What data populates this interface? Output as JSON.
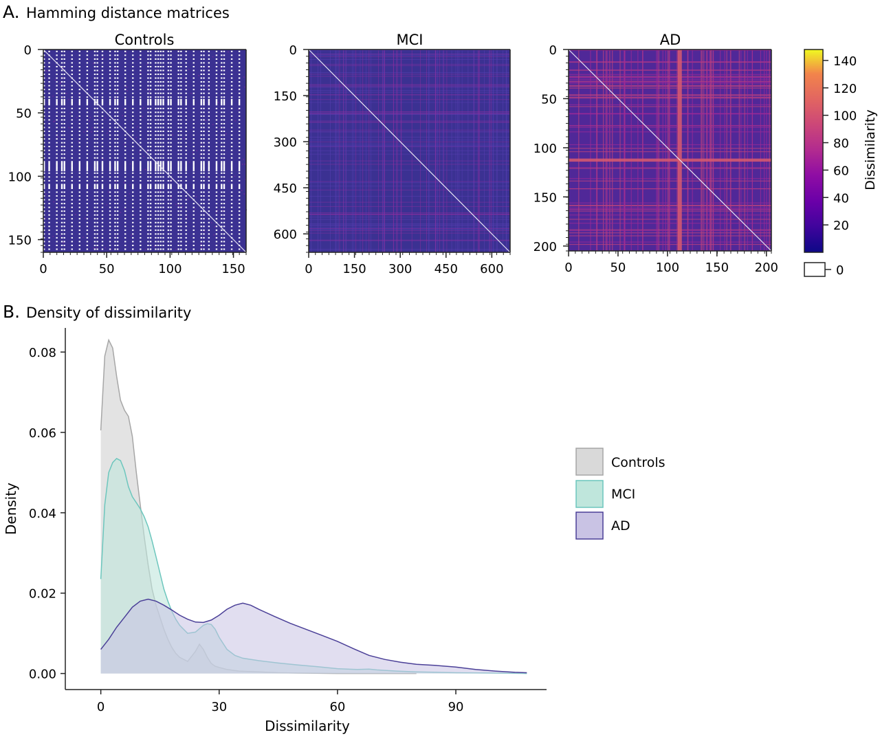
{
  "panel_a": {
    "letter": "A.",
    "title": "Hamming distance matrices"
  },
  "panel_b": {
    "letter": "B.",
    "title": "Density of dissimilarity"
  },
  "colors": {
    "controls_fill": "#d9d9d9",
    "controls_line": "#a6a6a6",
    "mci_fill": "#bfe6dc",
    "mci_line": "#6cc6bd",
    "ad_fill": "#c9c3e4",
    "ad_line": "#4a3f97",
    "heatmap_base": "#3b3192",
    "axis": "#222222"
  },
  "colorbar": {
    "label": "Dissimilarity",
    "ticks": [
      "140",
      "120",
      "100",
      "80",
      "60",
      "40",
      "20"
    ],
    "zero_label": "0",
    "range": [
      0,
      148
    ]
  },
  "chart_data": [
    {
      "type": "heatmap",
      "title": "Controls",
      "n": 160,
      "y_ticks": [
        "0",
        "50",
        "100",
        "150"
      ],
      "x_ticks": [
        "0",
        "50",
        "100",
        "150"
      ],
      "tick_values": [
        0,
        50,
        100,
        150
      ],
      "typical_value": 8,
      "zero_pattern": "many white rows/columns (dissimilarity 0)"
    },
    {
      "type": "heatmap",
      "title": "MCI",
      "n": 660,
      "y_ticks": [
        "0",
        "150",
        "300",
        "450",
        "600"
      ],
      "x_ticks": [
        "0",
        "150",
        "300",
        "450",
        "600"
      ],
      "tick_values": [
        0,
        150,
        300,
        450,
        600
      ],
      "typical_value": 28
    },
    {
      "type": "heatmap",
      "title": "AD",
      "n": 205,
      "y_ticks": [
        "0",
        "50",
        "100",
        "150",
        "200"
      ],
      "x_ticks": [
        "0",
        "50",
        "100",
        "150",
        "200"
      ],
      "tick_values": [
        0,
        50,
        100,
        150,
        200
      ],
      "typical_value": 40,
      "high_band_index": 112
    },
    {
      "type": "area",
      "title": "Density of dissimilarity",
      "xlabel": "Dissimilarity",
      "ylabel": "Density",
      "xlim": [
        -9,
        113
      ],
      "ylim": [
        -0.004,
        0.086
      ],
      "x_ticks": [
        "0",
        "30",
        "60",
        "90"
      ],
      "x_tick_values": [
        0,
        30,
        60,
        90
      ],
      "y_ticks": [
        "0.00",
        "0.02",
        "0.04",
        "0.06",
        "0.08"
      ],
      "y_tick_values": [
        0,
        0.02,
        0.04,
        0.06,
        0.08
      ],
      "legend": [
        "Controls",
        "MCI",
        "AD"
      ],
      "series": [
        {
          "name": "Controls",
          "x": [
            0,
            1,
            2,
            3,
            4,
            5,
            6,
            7,
            8,
            9,
            10,
            11,
            12,
            13,
            14,
            15,
            16,
            17,
            18,
            19,
            20,
            22,
            24,
            25,
            26,
            27,
            28,
            29,
            30,
            32,
            35,
            40,
            45,
            50,
            60,
            70,
            80
          ],
          "y": [
            0.0605,
            0.079,
            0.083,
            0.081,
            0.074,
            0.068,
            0.0655,
            0.064,
            0.059,
            0.05,
            0.042,
            0.034,
            0.027,
            0.021,
            0.017,
            0.014,
            0.011,
            0.0085,
            0.0065,
            0.005,
            0.004,
            0.003,
            0.0055,
            0.0073,
            0.006,
            0.004,
            0.0025,
            0.0018,
            0.0015,
            0.001,
            0.0006,
            0.0004,
            0.0002,
            0.0001,
            0.0,
            0.0,
            0.0
          ]
        },
        {
          "name": "MCI",
          "x": [
            0,
            1,
            2,
            3,
            4,
            5,
            6,
            7,
            8,
            9,
            10,
            11,
            12,
            13,
            14,
            15,
            16,
            17,
            18,
            19,
            20,
            22,
            24,
            26,
            27,
            28,
            29,
            30,
            32,
            34,
            36,
            40,
            45,
            50,
            55,
            60,
            65,
            68,
            70,
            75,
            80,
            90,
            100,
            108
          ],
          "y": [
            0.0235,
            0.042,
            0.05,
            0.0525,
            0.0535,
            0.053,
            0.0505,
            0.0465,
            0.044,
            0.0425,
            0.041,
            0.039,
            0.0365,
            0.033,
            0.029,
            0.025,
            0.021,
            0.018,
            0.0155,
            0.0135,
            0.012,
            0.01,
            0.0103,
            0.012,
            0.0124,
            0.0122,
            0.011,
            0.009,
            0.006,
            0.0045,
            0.0038,
            0.0032,
            0.0026,
            0.0021,
            0.0017,
            0.0012,
            0.001,
            0.0011,
            0.0009,
            0.0006,
            0.0004,
            0.0002,
            0.0001,
            0.0
          ]
        },
        {
          "name": "AD",
          "x": [
            0,
            2,
            4,
            6,
            8,
            10,
            12,
            14,
            16,
            18,
            20,
            22,
            24,
            26,
            28,
            30,
            32,
            34,
            36,
            38,
            40,
            44,
            48,
            52,
            56,
            60,
            64,
            68,
            72,
            76,
            80,
            85,
            90,
            95,
            100,
            105,
            108
          ],
          "y": [
            0.006,
            0.0085,
            0.0115,
            0.014,
            0.0165,
            0.018,
            0.0185,
            0.018,
            0.017,
            0.0158,
            0.0145,
            0.0135,
            0.0128,
            0.0127,
            0.0133,
            0.0145,
            0.016,
            0.017,
            0.0175,
            0.017,
            0.016,
            0.0142,
            0.0125,
            0.011,
            0.0095,
            0.008,
            0.0062,
            0.0045,
            0.0035,
            0.0028,
            0.0023,
            0.002,
            0.0016,
            0.001,
            0.0006,
            0.0003,
            0.0002
          ]
        }
      ]
    }
  ]
}
